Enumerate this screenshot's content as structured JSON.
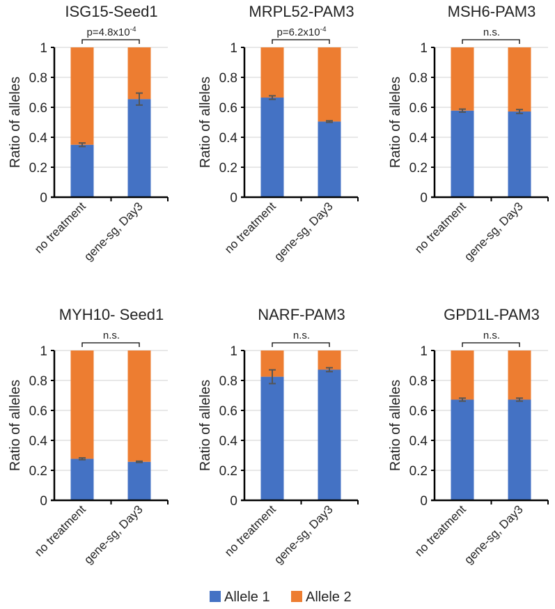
{
  "chart_data": [
    {
      "type": "bar",
      "stacked": true,
      "title": "ISG15-Seed1",
      "annotation": "p=4.8x10",
      "annotation_exp": "-4",
      "ylabel": "Ratio of alleles",
      "ylim": [
        0,
        1
      ],
      "yticks": [
        "0",
        "0.2",
        "0.4",
        "0.6",
        "0.8",
        "1"
      ],
      "categories": [
        "no treatment",
        "gene-sg, Day3"
      ],
      "series": [
        {
          "name": "Allele 1",
          "values": [
            0.35,
            0.655
          ],
          "errors": [
            0.012,
            0.04
          ]
        },
        {
          "name": "Allele 2",
          "values": [
            0.65,
            0.345
          ]
        }
      ]
    },
    {
      "type": "bar",
      "stacked": true,
      "title": "MRPL52-PAM3",
      "annotation": "p=6.2x10",
      "annotation_exp": "-4",
      "ylabel": "Ratio of alleles",
      "ylim": [
        0,
        1
      ],
      "yticks": [
        "0",
        "0.2",
        "0.4",
        "0.6",
        "0.8",
        "1"
      ],
      "categories": [
        "no treatment",
        "gene-sg, Day3"
      ],
      "series": [
        {
          "name": "Allele 1",
          "values": [
            0.665,
            0.505
          ],
          "errors": [
            0.012,
            0.005
          ]
        },
        {
          "name": "Allele 2",
          "values": [
            0.335,
            0.495
          ]
        }
      ]
    },
    {
      "type": "bar",
      "stacked": true,
      "title": "MSH6-PAM3",
      "annotation": "n.s.",
      "annotation_exp": "",
      "ylabel": "Ratio of alleles",
      "ylim": [
        0,
        1
      ],
      "yticks": [
        "0",
        "0.2",
        "0.4",
        "0.6",
        "0.8",
        "1"
      ],
      "categories": [
        "no treatment",
        "gene-sg, Day3"
      ],
      "series": [
        {
          "name": "Allele 1",
          "values": [
            0.578,
            0.572
          ],
          "errors": [
            0.01,
            0.013
          ]
        },
        {
          "name": "Allele 2",
          "values": [
            0.422,
            0.428
          ]
        }
      ]
    },
    {
      "type": "bar",
      "stacked": true,
      "title": "MYH10- Seed1",
      "annotation": "n.s.",
      "annotation_exp": "",
      "ylabel": "Ratio of alleles",
      "ylim": [
        0,
        1
      ],
      "yticks": [
        "0",
        "0.2",
        "0.4",
        "0.6",
        "0.8",
        "1"
      ],
      "categories": [
        "no treatment",
        "gene-sg, Day3"
      ],
      "series": [
        {
          "name": "Allele 1",
          "values": [
            0.277,
            0.257
          ],
          "errors": [
            0.006,
            0.004
          ]
        },
        {
          "name": "Allele 2",
          "values": [
            0.723,
            0.743
          ]
        }
      ]
    },
    {
      "type": "bar",
      "stacked": true,
      "title": "NARF-PAM3",
      "annotation": "n.s.",
      "annotation_exp": "",
      "ylabel": "Ratio of alleles",
      "ylim": [
        0,
        1
      ],
      "yticks": [
        "0",
        "0.2",
        "0.4",
        "0.6",
        "0.8",
        "1"
      ],
      "categories": [
        "no treatment",
        "gene-sg, Day3"
      ],
      "series": [
        {
          "name": "Allele 1",
          "values": [
            0.825,
            0.872
          ],
          "errors": [
            0.046,
            0.013
          ]
        },
        {
          "name": "Allele 2",
          "values": [
            0.175,
            0.128
          ]
        }
      ]
    },
    {
      "type": "bar",
      "stacked": true,
      "title": "GPD1L-PAM3",
      "annotation": "n.s.",
      "annotation_exp": "",
      "ylabel": "Ratio of alleles",
      "ylim": [
        0,
        1
      ],
      "yticks": [
        "0",
        "0.2",
        "0.4",
        "0.6",
        "0.8",
        "1"
      ],
      "categories": [
        "no treatment",
        "gene-sg, Day3"
      ],
      "series": [
        {
          "name": "Allele 1",
          "values": [
            0.672,
            0.672
          ],
          "errors": [
            0.01,
            0.01
          ]
        },
        {
          "name": "Allele 2",
          "values": [
            0.328,
            0.328
          ]
        }
      ]
    }
  ],
  "legend": {
    "placement": "bottom-center",
    "items": [
      {
        "label": "Allele 1",
        "color": "#4472C4"
      },
      {
        "label": "Allele 2",
        "color": "#ED7D31"
      }
    ]
  }
}
